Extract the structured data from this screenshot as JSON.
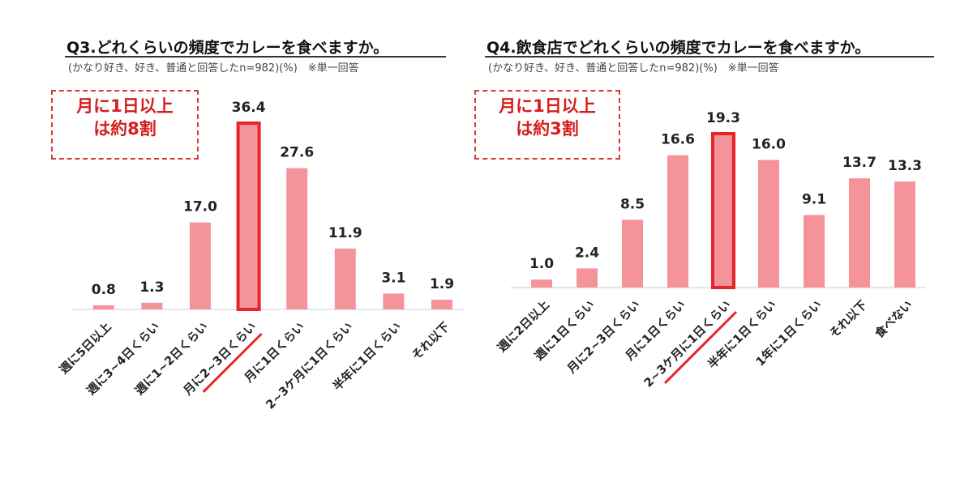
{
  "charts": [
    {
      "title": "Q3.どれくらいの頻度でカレーを食べますか。",
      "subtitle": "(かなり好き、好き、普通と回答したn=982)(%)　※単一回答",
      "callout": {
        "line1": "月に1日以上",
        "line2": "は約8割"
      }
    },
    {
      "title": "Q4.飲食店でどれくらいの頻度でカレーを食べますか。",
      "subtitle": "(かなり好き、好き、普通と回答したn=982)(%)　※単一回答",
      "callout": {
        "line1": "月に1日以上",
        "line2": "は約3割"
      }
    }
  ],
  "colors": {
    "bar": "#f4949a",
    "highlight": "#e8242a",
    "axis": "#cccccc",
    "label": "#222222"
  },
  "chart_data": [
    {
      "type": "bar",
      "title": "Q3.どれくらいの頻度でカレーを食べますか。",
      "xlabel": "",
      "ylabel": "",
      "categories": [
        "週に5日以上",
        "週に3~4日くらい",
        "週に1~2日くらい",
        "月に2~3日くらい",
        "月に1日くらい",
        "2~3ケ月に1日くらい",
        "半年に1日くらい",
        "それ以下"
      ],
      "values": [
        0.8,
        1.3,
        17.0,
        36.4,
        27.6,
        11.9,
        3.1,
        1.9
      ],
      "highlight_index": 3,
      "ylim": [
        0,
        36.4
      ],
      "grid": false,
      "legend": "none"
    },
    {
      "type": "bar",
      "title": "Q4.飲食店でどれくらいの頻度でカレーを食べますか。",
      "xlabel": "",
      "ylabel": "",
      "categories": [
        "週に2日以上",
        "週に1日くらい",
        "月に2~3日くらい",
        "月に1日くらい",
        "2~3ケ月に1日くらい",
        "半年に1日くらい",
        "1年に1日くらい",
        "それ以下",
        "食べない"
      ],
      "values": [
        1.0,
        2.4,
        8.5,
        16.6,
        19.3,
        16.0,
        9.1,
        13.7,
        13.3
      ],
      "highlight_index": 4,
      "ylim": [
        0,
        19.3
      ],
      "grid": false,
      "legend": "none"
    }
  ]
}
